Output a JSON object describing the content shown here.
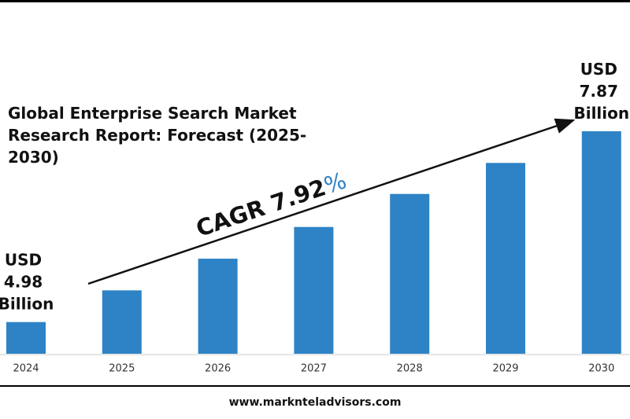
{
  "chart_data": {
    "type": "bar",
    "title": "Global Enterprise Search Market Research Report: Forecast (2025-2030)",
    "annotation": "CAGR 7.92%",
    "categories": [
      "2024",
      "2025",
      "2026",
      "2027",
      "2028",
      "2029",
      "2030"
    ],
    "values": [
      4.98,
      5.46,
      5.94,
      6.42,
      6.92,
      7.39,
      7.87
    ],
    "value_labels": [
      "USD 4.98 Billion",
      null,
      null,
      null,
      null,
      null,
      "USD 7.87 Billion"
    ],
    "color": "#2e83c6",
    "ylim": [
      4.5,
      8
    ]
  },
  "footer": "www.marknteladvisors.com"
}
